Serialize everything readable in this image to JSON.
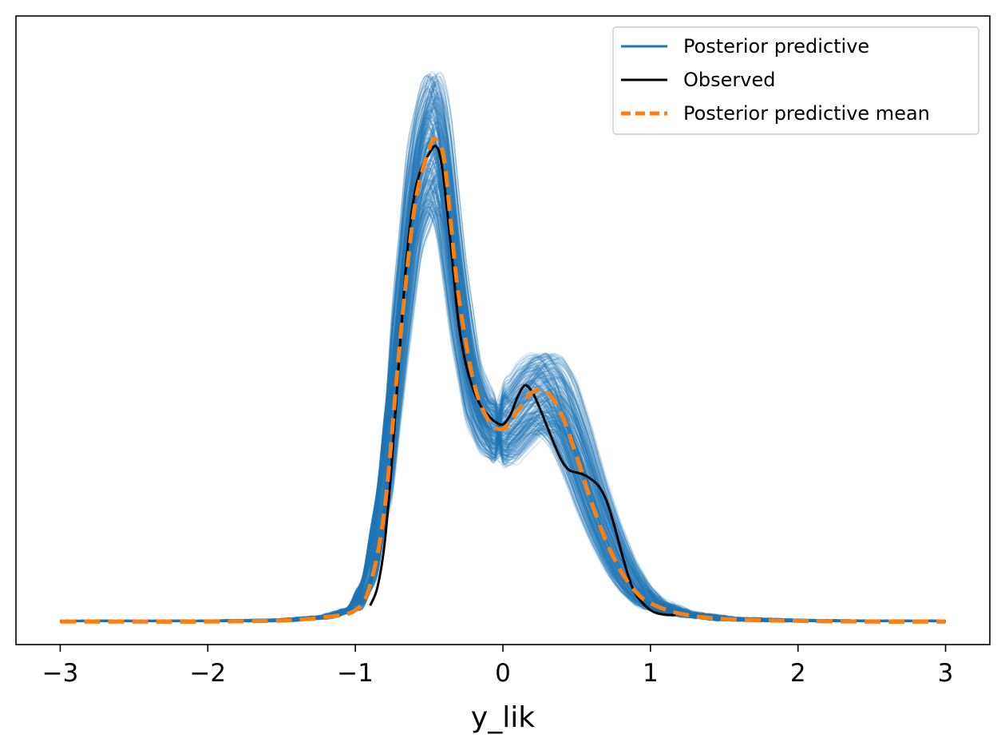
{
  "chart_data": {
    "type": "line",
    "title": "",
    "xlabel": "y_lik",
    "ylabel": "",
    "xlim": [
      -3.3,
      3.3
    ],
    "ylim": [
      -0.1,
      2.64
    ],
    "xticks": [
      {
        "value": -3,
        "label": "−3"
      },
      {
        "value": -2,
        "label": "−2"
      },
      {
        "value": -1,
        "label": "−1"
      },
      {
        "value": 0,
        "label": "0"
      },
      {
        "value": 1,
        "label": "1"
      },
      {
        "value": 2,
        "label": "2"
      },
      {
        "value": 3,
        "label": "3"
      }
    ],
    "grid": false,
    "legend_position": "top-right",
    "colors": {
      "posterior_predictive": "#1f77b4",
      "observed": "#000000",
      "mean": "#ff7f0e",
      "axes": "#000000",
      "background": "#ffffff"
    },
    "series": [
      {
        "name": "Posterior predictive",
        "style": "solid",
        "samples": 300,
        "x": [
          -3.0,
          -2.5,
          -2.0,
          -1.5,
          -1.2,
          -1.0,
          -0.9,
          -0.8,
          -0.7,
          -0.6,
          -0.5,
          -0.45,
          -0.4,
          -0.3,
          -0.2,
          -0.1,
          0.0,
          0.1,
          0.2,
          0.3,
          0.4,
          0.5,
          0.6,
          0.7,
          0.8,
          0.9,
          1.0,
          1.2,
          1.5,
          2.0,
          2.5,
          3.0
        ],
        "y": [
          0.0,
          0.0,
          0.0,
          0.005,
          0.02,
          0.06,
          0.2,
          0.6,
          1.25,
          1.85,
          2.08,
          2.08,
          1.95,
          1.4,
          1.0,
          0.85,
          0.82,
          0.9,
          0.98,
          1.0,
          0.92,
          0.75,
          0.55,
          0.38,
          0.24,
          0.14,
          0.08,
          0.035,
          0.012,
          0.003,
          0.0,
          0.0
        ]
      },
      {
        "name": "Observed",
        "style": "solid",
        "x": [
          -0.9,
          -0.85,
          -0.8,
          -0.75,
          -0.7,
          -0.65,
          -0.6,
          -0.55,
          -0.5,
          -0.47,
          -0.45,
          -0.43,
          -0.4,
          -0.35,
          -0.3,
          -0.25,
          -0.2,
          -0.15,
          -0.1,
          -0.05,
          0.0,
          0.05,
          0.1,
          0.15,
          0.2,
          0.25,
          0.3,
          0.35,
          0.4,
          0.45,
          0.5,
          0.55,
          0.6,
          0.65,
          0.7,
          0.75,
          0.8,
          0.85,
          0.9,
          1.0,
          1.1,
          1.17
        ],
        "y": [
          0.07,
          0.15,
          0.35,
          0.72,
          1.18,
          1.6,
          1.86,
          1.98,
          2.04,
          2.07,
          2.07,
          2.04,
          1.92,
          1.62,
          1.3,
          1.12,
          1.01,
          0.94,
          0.9,
          0.87,
          0.86,
          0.9,
          0.98,
          1.03,
          1.0,
          0.93,
          0.85,
          0.77,
          0.7,
          0.66,
          0.65,
          0.64,
          0.62,
          0.59,
          0.53,
          0.43,
          0.31,
          0.2,
          0.12,
          0.05,
          0.03,
          0.03
        ]
      },
      {
        "name": "Posterior predictive mean",
        "style": "dashed",
        "x": [
          -3.0,
          -2.5,
          -2.0,
          -1.5,
          -1.2,
          -1.0,
          -0.9,
          -0.8,
          -0.7,
          -0.6,
          -0.5,
          -0.45,
          -0.4,
          -0.35,
          -0.3,
          -0.2,
          -0.1,
          0.0,
          0.1,
          0.2,
          0.3,
          0.4,
          0.5,
          0.6,
          0.7,
          0.8,
          0.9,
          1.0,
          1.2,
          1.5,
          2.0,
          2.5,
          3.0
        ],
        "y": [
          0.0,
          0.0,
          0.0,
          0.005,
          0.02,
          0.05,
          0.16,
          0.5,
          1.2,
          1.8,
          2.06,
          2.1,
          2.02,
          1.72,
          1.42,
          1.05,
          0.88,
          0.84,
          0.92,
          1.0,
          1.0,
          0.9,
          0.72,
          0.52,
          0.35,
          0.22,
          0.13,
          0.08,
          0.035,
          0.012,
          0.003,
          0.0,
          0.0
        ]
      }
    ]
  }
}
